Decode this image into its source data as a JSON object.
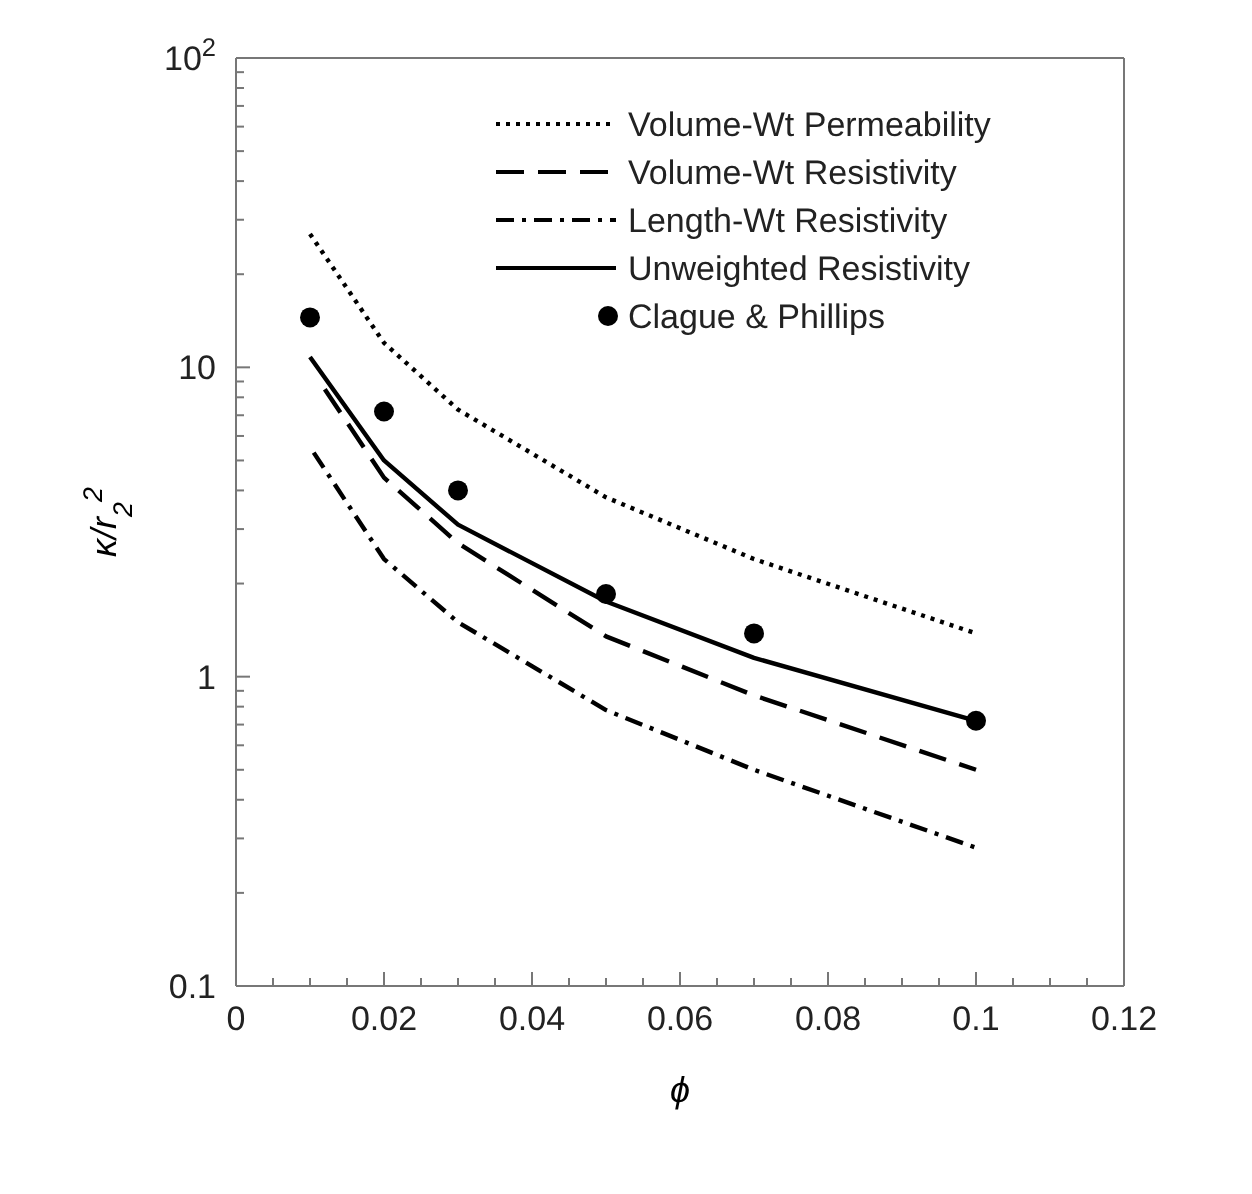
{
  "chart_data": {
    "type": "line",
    "xlabel": "ϕ",
    "ylabel": "κ/r$_{2}$$^{2}$",
    "log": "y",
    "legend": "top right",
    "xlim": [
      0,
      0.12
    ],
    "xticks": [
      0,
      {
        "value": 0.005,
        "label": null
      },
      0.02,
      {
        "value": 0.015,
        "label": null
      },
      {
        "value": 0.01,
        "label": null
      },
      0.04,
      {
        "value": 0.025,
        "label": null
      },
      {
        "value": 0.03,
        "label": null
      },
      {
        "value": 0.035,
        "label": null
      },
      0.06,
      {
        "value": 0.045,
        "label": null
      },
      {
        "value": 0.05,
        "label": null
      },
      {
        "value": 0.055,
        "label": null
      },
      0.08,
      {
        "value": 0.065,
        "label": null
      },
      {
        "value": 0.07,
        "label": null
      },
      {
        "value": 0.075,
        "label": null
      },
      0.1,
      {
        "value": 0.085,
        "label": null
      },
      {
        "value": 0.09,
        "label": null
      },
      {
        "value": 0.095,
        "label": null
      },
      0.12,
      {
        "value": 0.105,
        "label": null
      },
      {
        "value": 0.11,
        "label": null
      },
      {
        "value": 0.115,
        "label": null
      }
    ],
    "ylim": [
      0.1,
      100
    ],
    "yticks": [
      0.1,
      {
        "value": 0.2,
        "label": null
      },
      {
        "value": 0.3,
        "label": null
      },
      {
        "value": 0.4,
        "label": null
      },
      {
        "value": 0.5,
        "label": null
      },
      {
        "value": 0.6,
        "label": null
      },
      {
        "value": 0.7,
        "label": null
      },
      {
        "value": 0.8,
        "label": null
      },
      {
        "value": 0.9,
        "label": null
      },
      1,
      {
        "value": 2,
        "label": null
      },
      {
        "value": 3,
        "label": null
      },
      {
        "value": 4,
        "label": null
      },
      {
        "value": 5,
        "label": null
      },
      {
        "value": 6,
        "label": null
      },
      {
        "value": 7,
        "label": null
      },
      {
        "value": 8,
        "label": null
      },
      {
        "value": 9,
        "label": null
      },
      10,
      {
        "value": 20,
        "label": null
      },
      {
        "value": 30,
        "label": null
      },
      {
        "value": 40,
        "label": null
      },
      {
        "value": 50,
        "label": null
      },
      {
        "value": 60,
        "label": null
      },
      {
        "value": 70,
        "label": null
      },
      {
        "value": 80,
        "label": null
      },
      {
        "value": 90,
        "label": null
      },
      {
        "value": 100,
        "label": "10$^{2}$"
      }
    ],
    "series": [
      {
        "name": "Volume-Wt Permeability",
        "line_style": "dotted",
        "color": "#000000",
        "x": [
          0.01,
          0.02,
          0.03,
          0.05,
          0.07,
          0.1
        ],
        "values": [
          27,
          12,
          7.3,
          3.8,
          2.4,
          1.38
        ]
      },
      {
        "name": "Volume-Wt Resistivity",
        "line_style": "dashed",
        "color": "#000000",
        "x": [
          0.012,
          0.02,
          0.03,
          0.05,
          0.07,
          0.1
        ],
        "values": [
          8.5,
          4.4,
          2.7,
          1.35,
          0.87,
          0.5
        ]
      },
      {
        "name": "Length-Wt Resistivity",
        "line_style": "dashdot",
        "color": "#000000",
        "x": [
          0.0105,
          0.02,
          0.03,
          0.05,
          0.07,
          0.1
        ],
        "values": [
          5.3,
          2.4,
          1.5,
          0.78,
          0.5,
          0.28
        ]
      },
      {
        "name": "Unweighted Resistivity",
        "line_style": "solid",
        "color": "#000000",
        "x": [
          0.01,
          0.02,
          0.03,
          0.05,
          0.07,
          0.1
        ],
        "values": [
          10.8,
          5.0,
          3.1,
          1.75,
          1.15,
          0.72
        ]
      },
      {
        "name": "Clague & Phillips",
        "type": "scatter",
        "marker": "circle",
        "color": "#000000",
        "x": [
          0.01,
          0.02,
          0.03,
          0.05,
          0.07,
          0.1
        ],
        "values": [
          14.5,
          7.2,
          4.0,
          1.85,
          1.38,
          0.72
        ]
      }
    ]
  }
}
